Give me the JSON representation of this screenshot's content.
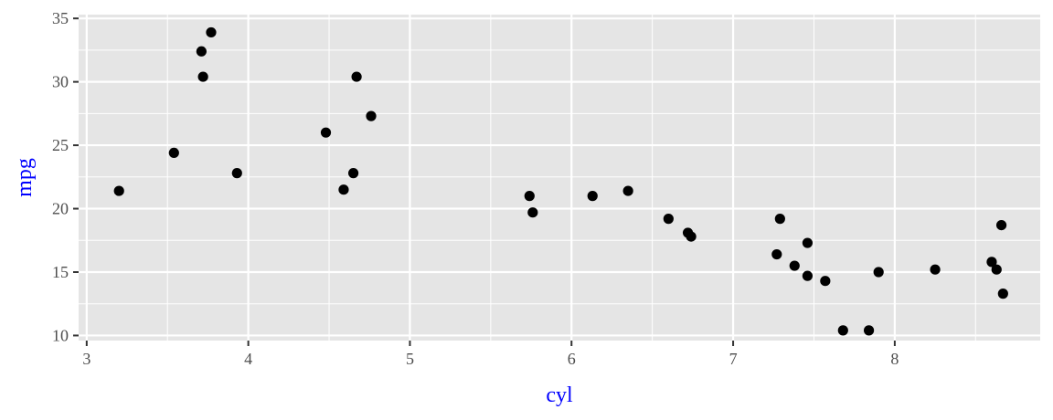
{
  "chart_data": {
    "type": "scatter",
    "xlabel": "cyl",
    "ylabel": "mpg",
    "xlim": [
      2.95,
      8.9
    ],
    "ylim": [
      9.6,
      35.3
    ],
    "x_ticks": [
      3,
      4,
      5,
      6,
      7,
      8
    ],
    "x_tick_labels": [
      "3",
      "4",
      "5",
      "6",
      "7",
      "8"
    ],
    "y_ticks": [
      10,
      15,
      20,
      25,
      30,
      35
    ],
    "y_tick_labels": [
      "10",
      "15",
      "20",
      "25",
      "30",
      "35"
    ],
    "grid": true,
    "colors": {
      "panel": "#e5e5e5",
      "grid": "#ffffff",
      "point": "#000000",
      "axis_title": "#0000ff",
      "tick": "#333333"
    },
    "points": [
      {
        "x": 3.2,
        "y": 21.4
      },
      {
        "x": 3.54,
        "y": 24.4
      },
      {
        "x": 3.71,
        "y": 32.4
      },
      {
        "x": 3.72,
        "y": 30.4
      },
      {
        "x": 3.77,
        "y": 33.9
      },
      {
        "x": 3.93,
        "y": 22.8
      },
      {
        "x": 4.48,
        "y": 26.0
      },
      {
        "x": 4.59,
        "y": 21.5
      },
      {
        "x": 4.65,
        "y": 22.8
      },
      {
        "x": 4.67,
        "y": 30.4
      },
      {
        "x": 4.76,
        "y": 27.3
      },
      {
        "x": 5.74,
        "y": 21.0
      },
      {
        "x": 5.76,
        "y": 19.7
      },
      {
        "x": 6.13,
        "y": 21.0
      },
      {
        "x": 6.35,
        "y": 21.4
      },
      {
        "x": 6.6,
        "y": 19.2
      },
      {
        "x": 6.72,
        "y": 18.1
      },
      {
        "x": 6.74,
        "y": 17.8
      },
      {
        "x": 7.27,
        "y": 16.4
      },
      {
        "x": 7.29,
        "y": 19.2
      },
      {
        "x": 7.38,
        "y": 15.5
      },
      {
        "x": 7.46,
        "y": 17.3
      },
      {
        "x": 7.46,
        "y": 14.7
      },
      {
        "x": 7.57,
        "y": 14.3
      },
      {
        "x": 7.68,
        "y": 10.4
      },
      {
        "x": 7.84,
        "y": 10.4
      },
      {
        "x": 7.9,
        "y": 15.0
      },
      {
        "x": 8.25,
        "y": 15.2
      },
      {
        "x": 8.6,
        "y": 15.8
      },
      {
        "x": 8.63,
        "y": 15.2
      },
      {
        "x": 8.66,
        "y": 18.7
      },
      {
        "x": 8.67,
        "y": 13.3
      }
    ]
  }
}
